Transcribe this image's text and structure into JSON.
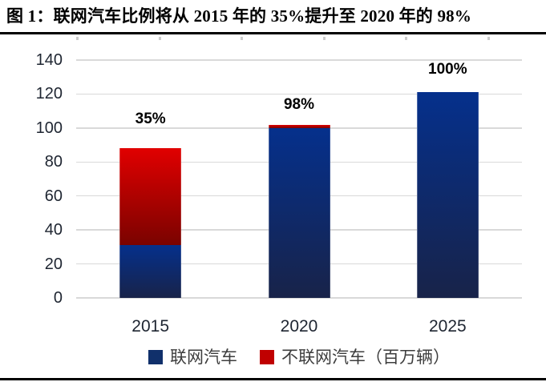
{
  "figure": {
    "title": "图 1：联网汽车比例将从 2015 年的 35%提升至 2020 年的 98%"
  },
  "chart_data": {
    "type": "bar",
    "stacked": true,
    "categories": [
      "2015",
      "2020",
      "2025"
    ],
    "series": [
      {
        "name": "联网汽车",
        "values": [
          31,
          100,
          121
        ],
        "color_top": "#05308c",
        "color_bottom": "#182349",
        "legend_color": "#10306b"
      },
      {
        "name": "不联网汽车（百万辆）",
        "values": [
          57,
          2,
          0
        ],
        "color_top": "#e10000",
        "color_bottom": "#7a0300",
        "legend_color": "#c00000"
      }
    ],
    "totals": [
      88,
      102,
      121
    ],
    "data_labels": [
      "35%",
      "98%",
      "100%"
    ],
    "ylim": [
      0,
      140
    ],
    "yticks": [
      0,
      20,
      40,
      60,
      80,
      100,
      120,
      140
    ],
    "grid": true,
    "legend_position": "bottom",
    "colors": {
      "gridline": "#d9d9d9",
      "axis_text": "#1e2531",
      "data_label_text": "#000000",
      "legend_text": "#3d3d3d",
      "rule": "#000000"
    }
  }
}
